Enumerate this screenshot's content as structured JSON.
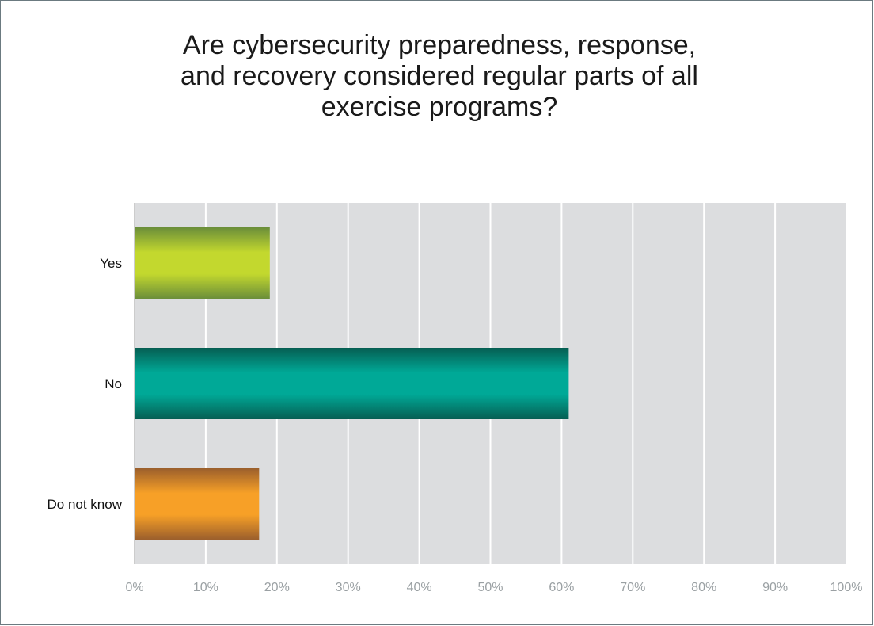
{
  "chart_data": {
    "type": "bar",
    "orientation": "horizontal",
    "title_lines": [
      "Are cybersecurity preparedness, response,",
      "and recovery considered regular parts of all",
      "exercise programs?"
    ],
    "categories": [
      "Yes",
      "No",
      "Do not know"
    ],
    "values": [
      19,
      61,
      17.5
    ],
    "unit": "%",
    "xlim": [
      0,
      100
    ],
    "x_ticks": [
      "0%",
      "10%",
      "20%",
      "30%",
      "40%",
      "50%",
      "60%",
      "70%",
      "80%",
      "90%",
      "100%"
    ],
    "grid": true,
    "legend": "none",
    "colors": {
      "plot_background": "#dcdddf",
      "gridline": "#ffffff",
      "bars": [
        {
          "light": "#c3d82e",
          "dark": "#6b8e3a"
        },
        {
          "light": "#00a997",
          "dark": "#065e52"
        },
        {
          "light": "#f7a027",
          "dark": "#9b5f2c"
        }
      ]
    }
  }
}
